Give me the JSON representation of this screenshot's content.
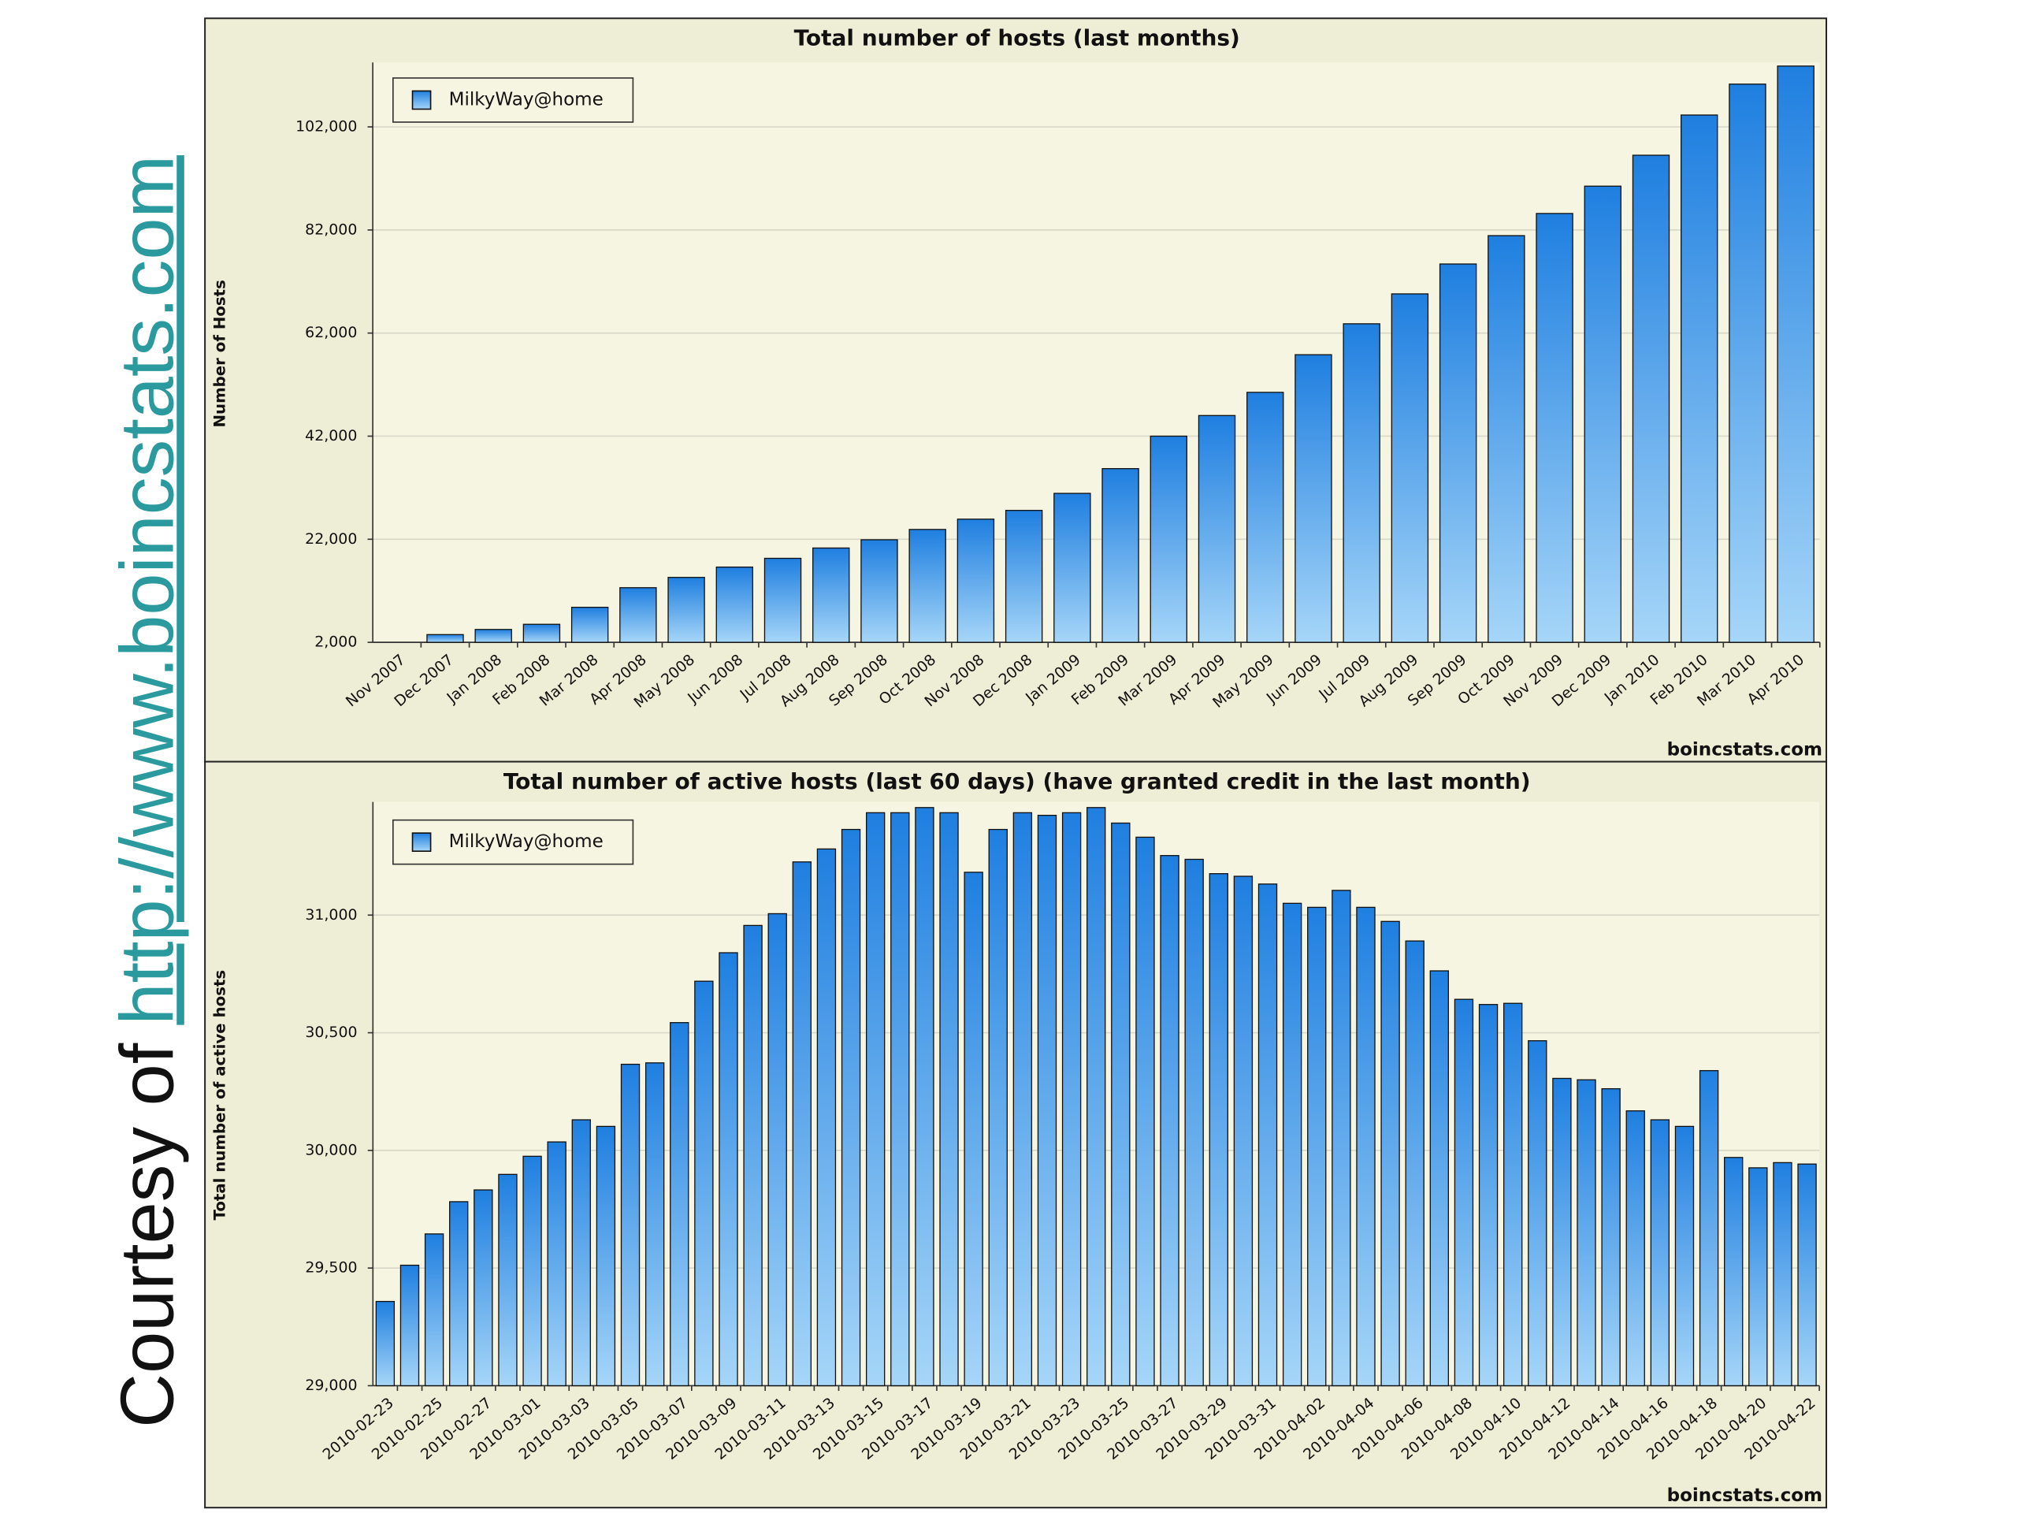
{
  "courtesy_text": "Courtesy of",
  "courtesy_link": "http://www.boincstats.com",
  "chart_data": [
    {
      "type": "bar",
      "title": "Total number of hosts (last months)",
      "ylabel": "Number of Hosts",
      "source": "boincstats.com",
      "legend": "upper left",
      "grid": true,
      "categories": [
        "Nov 2007",
        "Dec 2007",
        "Jan 2008",
        "Feb 2008",
        "Mar 2008",
        "Apr 2008",
        "May 2008",
        "Jun 2008",
        "Jul 2008",
        "Aug 2008",
        "Sep 2008",
        "Oct 2008",
        "Nov 2008",
        "Dec 2008",
        "Jan 2009",
        "Feb 2009",
        "Mar 2009",
        "Apr 2009",
        "May 2009",
        "Jun 2009",
        "Jul 2009",
        "Aug 2009",
        "Sep 2009",
        "Oct 2009",
        "Nov 2009",
        "Dec 2009",
        "Jan 2010",
        "Feb 2010",
        "Mar 2010",
        "Apr 2010"
      ],
      "series": [
        {
          "name": "MilkyWay@home",
          "color": "#1f7fe0",
          "values": [
            null,
            3500,
            4500,
            5500,
            8800,
            12600,
            14600,
            16600,
            18300,
            20300,
            21900,
            23900,
            25900,
            27600,
            30900,
            35700,
            42000,
            46000,
            50500,
            57800,
            63800,
            69600,
            75400,
            80900,
            85200,
            90500,
            96500,
            104300,
            110300,
            113800
          ]
        }
      ],
      "ylim": [
        2000,
        114000
      ],
      "yticks": [
        {
          "value": 2000,
          "label": "2,000"
        },
        {
          "value": 22000,
          "label": "22,000"
        },
        {
          "value": 42000,
          "label": "42,000"
        },
        {
          "value": 62000,
          "label": "62,000"
        },
        {
          "value": 82000,
          "label": "82,000"
        },
        {
          "value": 102000,
          "label": "102,000"
        }
      ]
    },
    {
      "type": "bar",
      "title": "Total number of active hosts (last 60 days) (have granted credit in the last month)",
      "ylabel": "Total number of active hosts",
      "source": "boincstats.com",
      "legend": "upper left",
      "grid": true,
      "categories": [
        "2010-02-23",
        null,
        "2010-02-25",
        null,
        "2010-02-27",
        null,
        "2010-03-01",
        null,
        "2010-03-03",
        null,
        "2010-03-05",
        null,
        "2010-03-07",
        null,
        "2010-03-09",
        null,
        "2010-03-11",
        null,
        "2010-03-13",
        null,
        "2010-03-15",
        null,
        "2010-03-17",
        null,
        "2010-03-19",
        null,
        "2010-03-21",
        null,
        "2010-03-23",
        null,
        "2010-03-25",
        null,
        "2010-03-27",
        null,
        "2010-03-29",
        null,
        "2010-03-31",
        null,
        "2010-04-02",
        null,
        "2010-04-04",
        null,
        "2010-04-06",
        null,
        "2010-04-08",
        null,
        "2010-04-10",
        null,
        "2010-04-12",
        null,
        "2010-04-14",
        null,
        "2010-04-16",
        null,
        "2010-04-18",
        null,
        "2010-04-20",
        null,
        "2010-04-22"
      ],
      "series": [
        {
          "name": "MilkyWay@home",
          "color": "#1f7fe0",
          "values": [
            29358,
            29512,
            29645,
            29782,
            29832,
            29898,
            29975,
            30036,
            30130,
            30102,
            30366,
            30372,
            30543,
            30719,
            30840,
            30956,
            31006,
            31226,
            31281,
            31364,
            31435,
            31435,
            31457,
            31435,
            31182,
            31364,
            31435,
            31424,
            31435,
            31457,
            31391,
            31331,
            31253,
            31237,
            31176,
            31165,
            31132,
            31050,
            31033,
            31105,
            31033,
            30973,
            30890,
            30763,
            30642,
            30620,
            30625,
            30466,
            30306,
            30300,
            30262,
            30168,
            30130,
            30102,
            30339,
            29970,
            29926,
            29948,
            29942
          ]
        }
      ],
      "ylim": [
        29000,
        31470
      ],
      "yticks": [
        {
          "value": 29000,
          "label": "29,000"
        },
        {
          "value": 29500,
          "label": "29,500"
        },
        {
          "value": 30000,
          "label": "30,000"
        },
        {
          "value": 30500,
          "label": "30,500"
        },
        {
          "value": 31000,
          "label": "31,000"
        }
      ]
    }
  ]
}
